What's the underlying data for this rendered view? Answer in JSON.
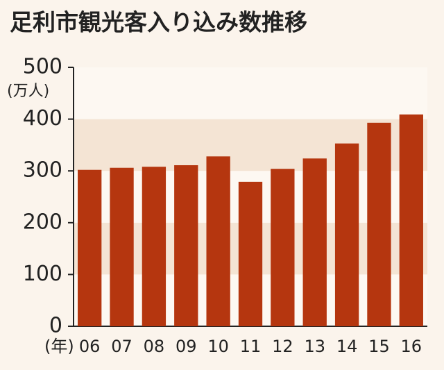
{
  "chart_data": {
    "type": "bar",
    "title": "足利市観光客入り込み数推移",
    "y_unit": "(万人)",
    "x_unit": "(年)",
    "categories": [
      "06",
      "07",
      "08",
      "09",
      "10",
      "11",
      "12",
      "13",
      "14",
      "15",
      "16"
    ],
    "values": [
      302,
      306,
      308,
      311,
      328,
      279,
      304,
      324,
      353,
      393,
      409
    ],
    "color": "#b5360f",
    "ylim": [
      0,
      500
    ],
    "yticks": [
      0,
      100,
      200,
      300,
      400,
      500
    ]
  }
}
